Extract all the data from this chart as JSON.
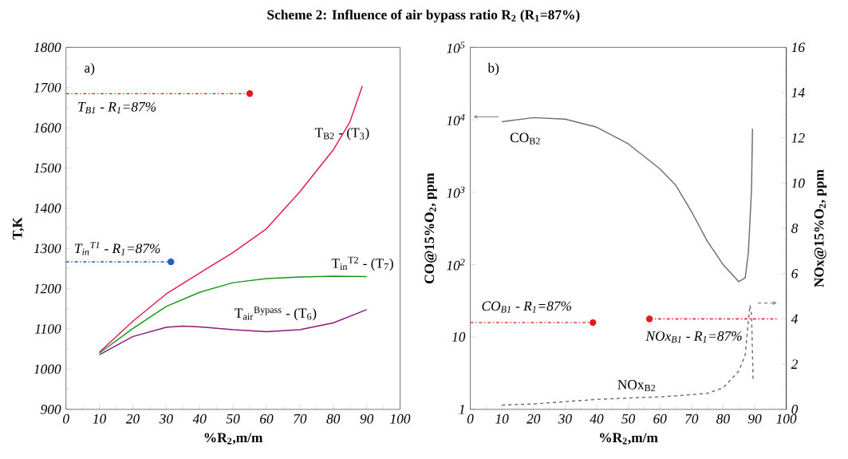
{
  "chart_data": [
    {
      "type": "line",
      "title": "Scheme 2: Influence of air bypass ratio R$_{2}$ (R$_{1}$=87%)",
      "xlabel": "%R$_{2}$,m/m",
      "ylabel": "T,K",
      "xlim": [
        0,
        100
      ],
      "ylim": [
        900,
        1800
      ],
      "xticks": [
        0,
        10,
        20,
        30,
        40,
        50,
        60,
        70,
        80,
        90,
        100
      ],
      "yticks": [
        900,
        1000,
        1100,
        1200,
        1300,
        1400,
        1500,
        1600,
        1700,
        1800
      ],
      "annotations": [
        "a)"
      ],
      "series": [
        {
          "name": "T$_{B2}$ - (T$_{3}$)",
          "color": "#e6195a",
          "x": [
            10,
            20,
            30,
            40,
            50,
            60,
            70,
            80,
            85,
            88.7
          ],
          "values": [
            1042,
            1119,
            1187,
            1239,
            1290,
            1349,
            1441,
            1545,
            1615,
            1704
          ]
        },
        {
          "name": "T$_{in}$$^{T2}$ - (T$_{7}$)",
          "color": "#1a961a",
          "x": [
            10,
            20,
            30,
            40,
            50,
            60,
            70,
            80,
            90
          ],
          "values": [
            1040,
            1101,
            1156,
            1191,
            1215,
            1225,
            1229,
            1231,
            1230
          ]
        },
        {
          "name": "T$_{air}$$^{Bypass}$ - (T$_{6}$)",
          "color": "#8b1a7a",
          "x": [
            10,
            20,
            30,
            35,
            40,
            50,
            60,
            70,
            80,
            90
          ],
          "values": [
            1036,
            1081,
            1104,
            1107,
            1105,
            1098,
            1093,
            1098,
            1115,
            1148
          ]
        },
        {
          "name": "T$_{B1}$ - R$_{1}$=87%",
          "color": "#e31a1c",
          "line_style": "dashdot",
          "x": [
            0,
            55
          ],
          "values": [
            1685,
            1685
          ]
        },
        {
          "type": "scatter",
          "marker": "circle",
          "color": "#e31a1c",
          "x": [
            55
          ],
          "values": [
            1685
          ]
        },
        {
          "name": "T$_{in}$$^{T1}$ - R$_{1}$=87%",
          "color": "#1f5fbf",
          "line_style": "dashdot",
          "x": [
            0,
            31.4
          ],
          "values": [
            1267,
            1267
          ]
        },
        {
          "type": "scatter",
          "marker": "circle",
          "color": "#1f5fbf",
          "x": [
            31.4
          ],
          "values": [
            1267
          ]
        }
      ]
    },
    {
      "type": "line",
      "xlabel": "%R$_{2}$,m/m",
      "ylabel": "CO@15%O$_{2}$, ppm",
      "y2label": "NOx@15%O$_{2}$, ppm",
      "log": "y",
      "xlim": [
        0,
        100
      ],
      "ylim": [
        1,
        100000
      ],
      "xticks": [
        0,
        10,
        20,
        30,
        40,
        50,
        60,
        70,
        80,
        90,
        100
      ],
      "yticks": [
        1,
        10,
        {
          "value": 100,
          "label": "10$^{2}$"
        },
        {
          "value": 1000,
          "label": "10$^{3}$"
        },
        {
          "value": 10000,
          "label": "10$^{4}$"
        },
        {
          "value": 100000,
          "label": "10$^{5}$"
        }
      ],
      "y2lim": [
        0,
        16
      ],
      "y2ticks": [
        0,
        2,
        4,
        6,
        8,
        10,
        12,
        14,
        16
      ],
      "annotations": [
        "b)"
      ],
      "series": [
        {
          "name": "CO$_{B2}$",
          "color": "#6e6e6e",
          "x": [
            10,
            20,
            30,
            40,
            50,
            60,
            65,
            70,
            75,
            80,
            85,
            87,
            88,
            89,
            89.3
          ],
          "values": [
            9400,
            10700,
            10200,
            7900,
            4650,
            2100,
            1250,
            540,
            210,
            100,
            58,
            66,
            145,
            1100,
            7500
          ]
        },
        {
          "name": "NOx$_{B2}$",
          "axis": "y2",
          "color": "#6e6e6e",
          "line_style": "dashed",
          "x": [
            10,
            20,
            30,
            40,
            50,
            60,
            70,
            75,
            80,
            85,
            87,
            88,
            88.5,
            89,
            89.5
          ],
          "values": [
            0.19,
            0.24,
            0.34,
            0.44,
            0.5,
            0.55,
            0.65,
            0.71,
            0.95,
            1.7,
            2.4,
            3.9,
            4.6,
            4.2,
            1.3
          ]
        },
        {
          "name": "CO$_{B1}$ - R$_{1}$=87%",
          "color": "#e31a1c",
          "line_style": "dashdot",
          "x": [
            0,
            38.8
          ],
          "values": [
            15.8,
            15.8
          ]
        },
        {
          "type": "scatter",
          "marker": "circle",
          "color": "#e31a1c",
          "x": [
            38.8
          ],
          "values": [
            15.8
          ]
        },
        {
          "name": "NOx$_{B1}$ - R$_{1}$=87%",
          "axis": "y2",
          "color": "#e31a1c",
          "line_style": "dashdot",
          "x": [
            56.7,
            97.6
          ],
          "values": [
            4.0,
            4.0
          ]
        },
        {
          "type": "scatter",
          "axis": "y2",
          "marker": "circle",
          "color": "#e31a1c",
          "x": [
            56.7
          ],
          "values": [
            4.0
          ]
        }
      ]
    }
  ]
}
